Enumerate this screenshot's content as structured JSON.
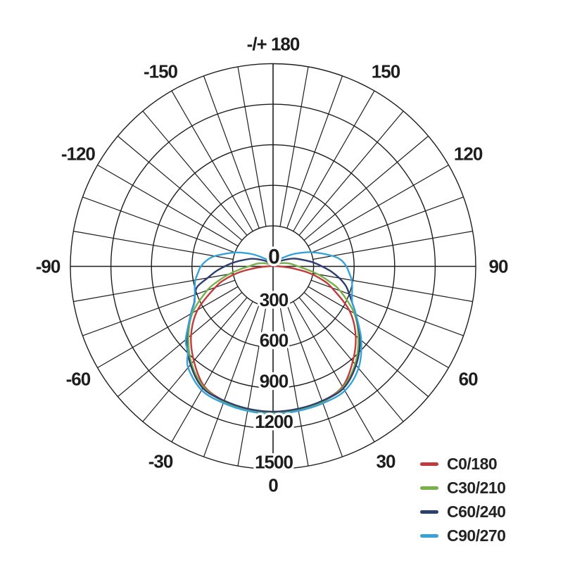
{
  "chart_data": {
    "type": "line",
    "subtype": "polar-photometric-luminous-intensity",
    "units": "cd",
    "grid": true,
    "grid_color": "#1d1d1d",
    "text_color": "#1d1d1d",
    "angle_step_deg": 10,
    "radial_axis": {
      "min": 0,
      "max": 1500,
      "step": 300,
      "tick_labels": [
        "0",
        "300",
        "600",
        "900",
        "1200",
        "1500"
      ]
    },
    "angle_labels": [
      {
        "angle": 180,
        "label": "-/+ 180"
      },
      {
        "angle": -150,
        "label": "-150"
      },
      {
        "angle": 150,
        "label": "150"
      },
      {
        "angle": -120,
        "label": "-120"
      },
      {
        "angle": 120,
        "label": "120"
      },
      {
        "angle": -90,
        "label": "-90"
      },
      {
        "angle": 90,
        "label": "90"
      },
      {
        "angle": -60,
        "label": "-60"
      },
      {
        "angle": 60,
        "label": "60"
      },
      {
        "angle": -30,
        "label": "-30"
      },
      {
        "angle": 30,
        "label": "30"
      },
      {
        "angle": 0,
        "label": "0"
      }
    ],
    "legend_position": "bottom-right",
    "series": [
      {
        "name": "C0/180",
        "color": "#c23a3c",
        "points": [
          [
            -180,
            5
          ],
          [
            -170,
            5
          ],
          [
            -160,
            5
          ],
          [
            -150,
            5
          ],
          [
            -140,
            5
          ],
          [
            -130,
            5
          ],
          [
            -120,
            6
          ],
          [
            -110,
            8
          ],
          [
            -100,
            16
          ],
          [
            -90,
            42
          ],
          [
            -85,
            125
          ],
          [
            -80,
            255
          ],
          [
            -75,
            365
          ],
          [
            -70,
            455
          ],
          [
            -60,
            645
          ],
          [
            -50,
            792
          ],
          [
            -40,
            912
          ],
          [
            -30,
            1022
          ],
          [
            -20,
            1060
          ],
          [
            -10,
            1080
          ],
          [
            0,
            1085
          ],
          [
            10,
            1080
          ],
          [
            20,
            1062
          ],
          [
            30,
            1028
          ],
          [
            40,
            918
          ],
          [
            50,
            798
          ],
          [
            60,
            652
          ],
          [
            70,
            462
          ],
          [
            75,
            372
          ],
          [
            80,
            262
          ],
          [
            85,
            132
          ],
          [
            90,
            46
          ],
          [
            100,
            18
          ],
          [
            110,
            9
          ],
          [
            120,
            6
          ],
          [
            130,
            5
          ],
          [
            140,
            5
          ],
          [
            150,
            5
          ],
          [
            160,
            5
          ],
          [
            170,
            5
          ],
          [
            180,
            5
          ]
        ]
      },
      {
        "name": "C30/210",
        "color": "#78b04a",
        "points": [
          [
            -180,
            5
          ],
          [
            -170,
            6
          ],
          [
            -160,
            8
          ],
          [
            -150,
            10
          ],
          [
            -140,
            14
          ],
          [
            -130,
            20
          ],
          [
            -120,
            34
          ],
          [
            -110,
            68
          ],
          [
            -100,
            118
          ],
          [
            -90,
            180
          ],
          [
            -85,
            242
          ],
          [
            -80,
            330
          ],
          [
            -75,
            422
          ],
          [
            -70,
            518
          ],
          [
            -60,
            688
          ],
          [
            -50,
            818
          ],
          [
            -40,
            938
          ],
          [
            -30,
            1030
          ],
          [
            -20,
            1065
          ],
          [
            -10,
            1080
          ],
          [
            0,
            1086
          ],
          [
            10,
            1082
          ],
          [
            20,
            1068
          ],
          [
            30,
            1034
          ],
          [
            40,
            944
          ],
          [
            50,
            824
          ],
          [
            60,
            694
          ],
          [
            70,
            528
          ],
          [
            75,
            430
          ],
          [
            80,
            338
          ],
          [
            85,
            248
          ],
          [
            90,
            186
          ],
          [
            100,
            124
          ],
          [
            110,
            72
          ],
          [
            120,
            36
          ],
          [
            130,
            21
          ],
          [
            140,
            14
          ],
          [
            150,
            10
          ],
          [
            160,
            8
          ],
          [
            170,
            6
          ],
          [
            180,
            5
          ]
        ]
      },
      {
        "name": "C60/240",
        "color": "#2d3f6e",
        "points": [
          [
            -180,
            6
          ],
          [
            -170,
            8
          ],
          [
            -160,
            12
          ],
          [
            -150,
            18
          ],
          [
            -140,
            30
          ],
          [
            -130,
            55
          ],
          [
            -120,
            95
          ],
          [
            -110,
            165
          ],
          [
            -100,
            245
          ],
          [
            -95,
            300
          ],
          [
            -90,
            358
          ],
          [
            -85,
            425
          ],
          [
            -80,
            492
          ],
          [
            -75,
            580
          ],
          [
            -70,
            615
          ],
          [
            -65,
            645
          ],
          [
            -60,
            702
          ],
          [
            -50,
            835
          ],
          [
            -40,
            950
          ],
          [
            -30,
            1040
          ],
          [
            -20,
            1058
          ],
          [
            -10,
            1070
          ],
          [
            0,
            1075
          ],
          [
            10,
            1070
          ],
          [
            20,
            1060
          ],
          [
            30,
            1042
          ],
          [
            40,
            955
          ],
          [
            50,
            840
          ],
          [
            60,
            706
          ],
          [
            65,
            648
          ],
          [
            70,
            600
          ],
          [
            75,
            558
          ],
          [
            80,
            498
          ],
          [
            85,
            432
          ],
          [
            90,
            362
          ],
          [
            95,
            305
          ],
          [
            100,
            248
          ],
          [
            110,
            168
          ],
          [
            120,
            96
          ],
          [
            130,
            56
          ],
          [
            140,
            30
          ],
          [
            150,
            18
          ],
          [
            160,
            12
          ],
          [
            170,
            8
          ],
          [
            180,
            6
          ]
        ]
      },
      {
        "name": "C90/270",
        "color": "#36a2d9",
        "points": [
          [
            -180,
            8
          ],
          [
            -170,
            12
          ],
          [
            -160,
            20
          ],
          [
            -150,
            35
          ],
          [
            -140,
            60
          ],
          [
            -130,
            100
          ],
          [
            -120,
            182
          ],
          [
            -110,
            300
          ],
          [
            -100,
            438
          ],
          [
            -95,
            494
          ],
          [
            -90,
            534
          ],
          [
            -85,
            558
          ],
          [
            -80,
            584
          ],
          [
            -75,
            600
          ],
          [
            -70,
            616
          ],
          [
            -65,
            642
          ],
          [
            -60,
            700
          ],
          [
            -50,
            844
          ],
          [
            -45,
            892
          ],
          [
            -40,
            978
          ],
          [
            -30,
            1058
          ],
          [
            -20,
            1076
          ],
          [
            -10,
            1086
          ],
          [
            0,
            1092
          ],
          [
            10,
            1086
          ],
          [
            20,
            1078
          ],
          [
            30,
            1062
          ],
          [
            40,
            984
          ],
          [
            50,
            852
          ],
          [
            60,
            708
          ],
          [
            65,
            648
          ],
          [
            70,
            622
          ],
          [
            75,
            606
          ],
          [
            80,
            592
          ],
          [
            85,
            566
          ],
          [
            90,
            542
          ],
          [
            95,
            508
          ],
          [
            100,
            446
          ],
          [
            110,
            306
          ],
          [
            120,
            186
          ],
          [
            130,
            103
          ],
          [
            140,
            62
          ],
          [
            150,
            36
          ],
          [
            160,
            20
          ],
          [
            170,
            12
          ],
          [
            180,
            8
          ]
        ]
      }
    ]
  }
}
